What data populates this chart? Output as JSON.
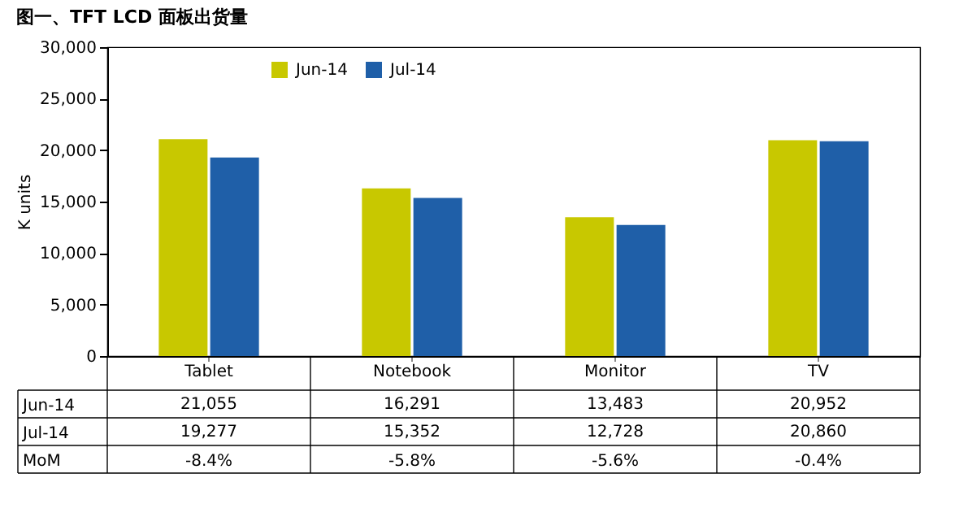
{
  "chart_data": {
    "type": "bar",
    "title": "图一、TFT LCD 面板出货量",
    "ylabel": "K units",
    "categories": [
      "Tablet",
      "Notebook",
      "Monitor",
      "TV"
    ],
    "series": [
      {
        "name": "Jun-14",
        "color": "#c8c800",
        "values": [
          21055,
          16291,
          13483,
          20952
        ],
        "value_labels": [
          "21,055",
          "16,291",
          "13,483",
          "20,952"
        ]
      },
      {
        "name": "Jul-14",
        "color": "#1f5fa8",
        "values": [
          19277,
          15352,
          12728,
          20860
        ],
        "value_labels": [
          "19,277",
          "15,352",
          "12,728",
          "20,860"
        ]
      }
    ],
    "annotations": [
      "MoM",
      "-8.4%",
      "-5.8%",
      "-5.6%",
      "-0.4%"
    ],
    "ylim": [
      0,
      30000
    ],
    "yticks": [
      0,
      {
        "value": 5000,
        "label": "5,000"
      },
      {
        "value": 10000,
        "label": "10,000"
      },
      {
        "value": 15000,
        "label": "15,000"
      },
      {
        "value": 20000,
        "label": "20,000"
      },
      {
        "value": 25000,
        "label": "25,000"
      },
      {
        "value": 30000,
        "label": "30,000"
      }
    ],
    "grid": false,
    "legend": "top"
  }
}
